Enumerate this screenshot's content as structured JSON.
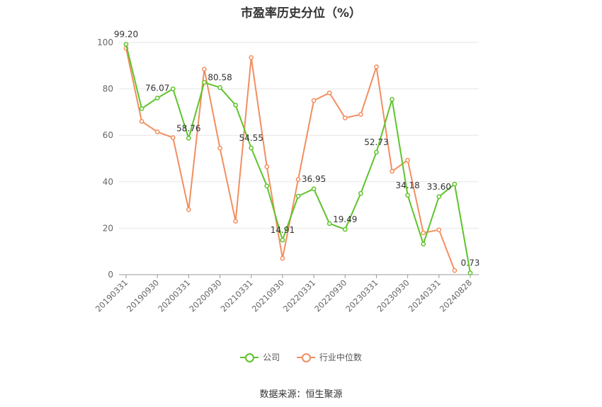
{
  "colors": {
    "company": "#5ec42a",
    "industry": "#f28e5f",
    "grid": "#e6e6e6",
    "axis": "#999999",
    "label": "#333333",
    "tick": "#666666"
  },
  "legend": {
    "company": "公司",
    "industry": "行业中位数"
  },
  "source": "数据来源：恒生聚源",
  "chart_data": {
    "type": "line",
    "title": "市盈率历史分位（%）",
    "xlabel": "",
    "ylabel": "",
    "ylim": [
      0,
      100
    ],
    "yticks": [
      "0",
      "20",
      "40",
      "60",
      "80",
      "100"
    ],
    "grid": true,
    "legend_position": "bottom",
    "x": [
      "20190331",
      "20190630",
      "20190930",
      "20191231",
      "20200331",
      "20200630",
      "20200930",
      "20201231",
      "20210331",
      "20210630",
      "20210930",
      "20211231",
      "20220331",
      "20220630",
      "20220930",
      "20221231",
      "20230331",
      "20230630",
      "20230930",
      "20231231",
      "20240331",
      "20240630",
      "20240828"
    ],
    "x_tick_labels": [
      "20190331",
      "20190930",
      "20200331",
      "20200930",
      "20210331",
      "20210930",
      "20220331",
      "20220930",
      "20230331",
      "20230930",
      "20240331",
      "20240828"
    ],
    "series": [
      {
        "name": "公司",
        "values": [
          99.2,
          71.5,
          76.07,
          80.0,
          58.76,
          82.8,
          80.58,
          73.0,
          54.55,
          38.2,
          14.91,
          33.8,
          36.95,
          22.0,
          19.49,
          35.0,
          52.73,
          75.5,
          34.18,
          13.2,
          33.6,
          39.0,
          0.73
        ],
        "labels": [
          "99.20",
          "",
          "76.07",
          "",
          "58.76",
          "",
          "80.58",
          "",
          "54.55",
          "",
          "14.91",
          "",
          "36.95",
          "",
          "19.49",
          "",
          "52.73",
          "",
          "34.18",
          "",
          "33.60",
          "",
          "0.73"
        ]
      },
      {
        "name": "行业中位数",
        "values": [
          97.5,
          66.0,
          61.5,
          59.0,
          28.0,
          88.5,
          54.5,
          23.0,
          93.5,
          46.5,
          7.0,
          41.0,
          75.0,
          78.3,
          67.5,
          69.0,
          89.5,
          44.5,
          49.3,
          18.0,
          19.3,
          1.8,
          null
        ]
      }
    ]
  }
}
